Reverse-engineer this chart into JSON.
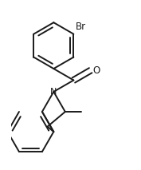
{
  "bg_color": "#ffffff",
  "line_color": "#1a1a1a",
  "line_width": 1.4,
  "font_size_atom": 8.5,
  "br_label": "Br",
  "n_label": "N",
  "o_label": "O"
}
